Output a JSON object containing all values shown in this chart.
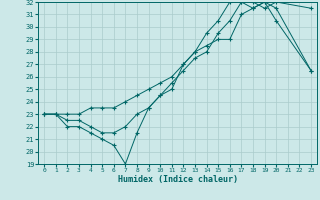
{
  "xlabel": "Humidex (Indice chaleur)",
  "xlim": [
    -0.5,
    23.5
  ],
  "ylim": [
    19,
    32
  ],
  "yticks": [
    19,
    20,
    21,
    22,
    23,
    24,
    25,
    26,
    27,
    28,
    29,
    30,
    31,
    32
  ],
  "xticks": [
    0,
    1,
    2,
    3,
    4,
    5,
    6,
    7,
    8,
    9,
    10,
    11,
    12,
    13,
    14,
    15,
    16,
    17,
    18,
    19,
    20,
    21,
    22,
    23
  ],
  "background_color": "#cce8e8",
  "grid_color": "#aacccc",
  "line_color": "#006666",
  "x": [
    0,
    1,
    2,
    3,
    4,
    5,
    6,
    7,
    8,
    9,
    10,
    11,
    12,
    13,
    14,
    15,
    16,
    17,
    18,
    19,
    20,
    23
  ],
  "min": [
    23.0,
    23.0,
    22.0,
    22.0,
    21.5,
    21.0,
    20.5,
    19.0,
    21.5,
    23.5,
    24.5,
    25.0,
    27.0,
    28.0,
    28.5,
    29.0,
    29.0,
    31.0,
    31.5,
    32.0,
    30.5,
    26.5
  ],
  "mean": [
    23.0,
    23.0,
    22.5,
    22.5,
    22.0,
    21.5,
    21.5,
    22.0,
    23.0,
    23.5,
    24.5,
    25.5,
    26.5,
    27.5,
    28.0,
    29.5,
    30.5,
    32.0,
    32.0,
    31.5,
    32.0,
    31.5
  ],
  "max": [
    23.0,
    23.0,
    23.0,
    23.0,
    23.5,
    23.5,
    23.5,
    24.0,
    24.5,
    25.0,
    25.5,
    26.0,
    27.0,
    28.0,
    29.5,
    30.5,
    32.0,
    32.0,
    31.5,
    32.0,
    31.5,
    26.5
  ]
}
